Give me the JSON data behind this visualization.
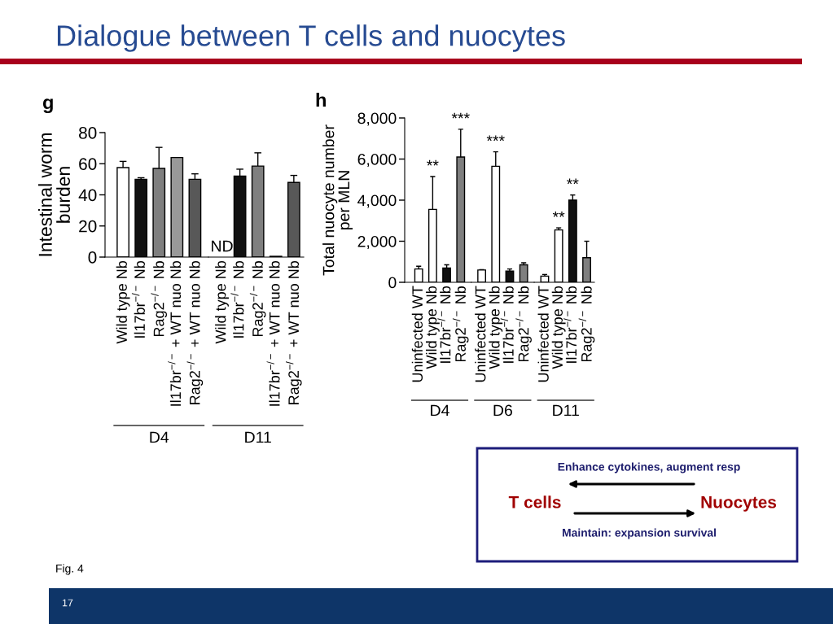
{
  "chart_data": [
    {
      "type": "other",
      "title": "Dialogue between T cells and nuocytes",
      "annotations": [
        "Fig. 4",
        "17"
      ]
    },
    {
      "type": "bar",
      "title": "g",
      "ylabel": "Intestinal worm\nburden",
      "xlabel": "D4",
      "categories": [
        "Wild type Nb",
        "Il17br$^{−/−}$ Nb",
        "Rag2$^{−/−}$ Nb",
        "Il17br$^{−/−}$ + WT nuo Nb",
        "Rag2$^{−/−}$ + WT nuo Nb"
      ],
      "values": [
        57.5,
        50,
        57,
        64,
        50
      ],
      "colors": [
        "#ffffff",
        "#111111",
        "#7f7f7f",
        "#999999",
        "#585858"
      ],
      "errors": [
        [
          57.5,
          61.5
        ],
        [
          50,
          51
        ],
        [
          57,
          70.5
        ],
        null,
        [
          50,
          53.5
        ]
      ],
      "ylim": [
        0,
        80
      ],
      "yticks": [
        0,
        20,
        40,
        60,
        80
      ]
    },
    {
      "type": "bar",
      "xlabel": "D11",
      "categories": [
        "Wild type Nb",
        "Il17br$^{−/−}$ Nb",
        "Rag2$^{−/−}$ Nb",
        "Il17br$^{−/−}$ + WT nuo Nb",
        "Rag2$^{−/−}$ + WT nuo Nb"
      ],
      "values": [
        null,
        52,
        58.5,
        0.5,
        48
      ],
      "colors": [
        "#ffffff",
        "#111111",
        "#7f7f7f",
        "#999999",
        "#585858"
      ],
      "errors": [
        null,
        [
          52,
          56.5
        ],
        [
          58.5,
          67
        ],
        null,
        [
          48,
          52.5
        ]
      ],
      "ylim": [
        0,
        80
      ],
      "tick_labels": "x",
      "annotations": [
        "ND"
      ]
    },
    {
      "type": "bar",
      "title": "h",
      "ylabel": "Total nuocyte number\nper MLN",
      "xlabel": "D4",
      "categories": [
        "Uninfected WT",
        "Wild type Nb",
        "Il17br$^{−/−}$ Nb",
        "Rag2$^{−/−}$ Nb"
      ],
      "values": [
        650,
        3550,
        700,
        6100
      ],
      "colors": [
        "#ffffff",
        "#ffffff",
        "#111111",
        "#7f7f7f"
      ],
      "errors": [
        [
          650,
          780
        ],
        [
          3550,
          5150
        ],
        [
          700,
          850
        ],
        [
          6100,
          7450
        ]
      ],
      "ylim": [
        0,
        8000
      ],
      "yticks": [
        0,
        {
          "value": 2000,
          "label": "2,000"
        },
        {
          "value": 4000,
          "label": "4,000"
        },
        {
          "value": 6000,
          "label": "6,000"
        },
        {
          "value": 8000,
          "label": "8,000"
        }
      ],
      "annotations": [
        {
          "text": "**",
          "x": "Wild type Nb",
          "y": 5150
        },
        {
          "text": "***",
          "x": "Rag2$^{−/−}$ Nb",
          "y": 7450
        }
      ]
    },
    {
      "type": "bar",
      "xlabel": "D6",
      "categories": [
        "Uninfected WT",
        "Wild type Nb",
        "Il17br$^{−/−}$ Nb",
        "Rag2$^{−/−}$ Nb"
      ],
      "values": [
        600,
        5650,
        550,
        850
      ],
      "colors": [
        "#ffffff",
        "#ffffff",
        "#111111",
        "#7f7f7f"
      ],
      "errors": [
        [
          600,
          620
        ],
        [
          5650,
          6350
        ],
        [
          550,
          650
        ],
        [
          850,
          950
        ]
      ],
      "ylim": [
        0,
        8000
      ],
      "tick_labels": "x",
      "annotations": [
        {
          "text": "***",
          "x": "Wild type Nb",
          "y": 6350
        }
      ]
    },
    {
      "type": "bar",
      "xlabel": "D11",
      "categories": [
        "Uninfected WT",
        "Wild type Nb",
        "Il17br$^{−/−}$ Nb",
        "Rag2$^{−/−}$ Nb"
      ],
      "values": [
        300,
        2550,
        4000,
        1200
      ],
      "colors": [
        "#ffffff",
        "#ffffff",
        "#111111",
        "#7f7f7f"
      ],
      "errors": [
        [
          300,
          380
        ],
        [
          2550,
          2650
        ],
        [
          4000,
          4250
        ],
        [
          1200,
          2000
        ]
      ],
      "ylim": [
        0,
        8000
      ],
      "tick_labels": "x",
      "annotations": [
        {
          "text": "**",
          "x": "Wild type Nb",
          "y": 2650
        },
        {
          "text": "**",
          "x": "Il17br$^{−/−}$ Nb",
          "y": 4250
        }
      ]
    },
    {
      "type": "other",
      "annotations": [
        "Enhance cytokines, augment resp",
        "T cells",
        "Nuocytes",
        "Maintain: expansion survival"
      ]
    }
  ]
}
